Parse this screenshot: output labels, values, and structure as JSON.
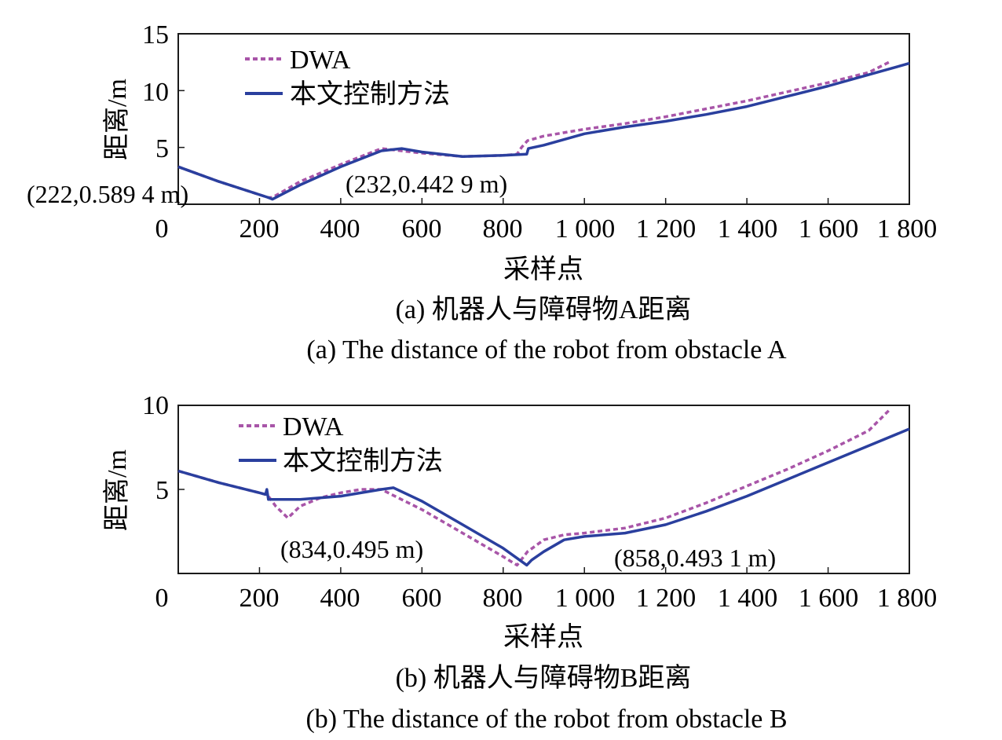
{
  "chart_data": [
    {
      "type": "line",
      "title": "",
      "caption_zh": "(a) 机器人与障碍物A距离",
      "caption_en": "(a) The distance of the robot from obstacle A",
      "xlabel": "采样点",
      "ylabel": "距离/m",
      "xlim": [
        0,
        1800
      ],
      "ylim": [
        0,
        15
      ],
      "xticks": [
        0,
        200,
        400,
        600,
        800,
        1000,
        1200,
        1400,
        1600,
        1800
      ],
      "xtick_labels": [
        "0",
        "200",
        "400",
        "600",
        "800",
        "1 000",
        "1 200",
        "1 400",
        "1 600",
        "1 800"
      ],
      "yticks": [
        5,
        10,
        15
      ],
      "ytick_labels": [
        "5",
        "10",
        "15"
      ],
      "legend_position": "top-left",
      "series": [
        {
          "name": "DWA",
          "color": "#a855a8",
          "dash": "dashed",
          "x": [
            0,
            100,
            222,
            232,
            300,
            400,
            500,
            550,
            600,
            700,
            800,
            834,
            845,
            860,
            900,
            1000,
            1100,
            1200,
            1300,
            1400,
            1500,
            1600,
            1700,
            1750
          ],
          "y": [
            3.3,
            2.0,
            0.59,
            0.6,
            2.0,
            3.5,
            4.9,
            4.7,
            4.5,
            4.2,
            4.3,
            4.4,
            5.0,
            5.6,
            6.0,
            6.6,
            7.1,
            7.7,
            8.4,
            9.1,
            9.9,
            10.7,
            11.6,
            12.5
          ]
        },
        {
          "name": "本文控制方法",
          "color": "#2a3f9e",
          "dash": "solid",
          "x": [
            0,
            100,
            222,
            232,
            300,
            400,
            500,
            550,
            600,
            700,
            800,
            858,
            862,
            900,
            1000,
            1100,
            1200,
            1300,
            1400,
            1500,
            1600,
            1700,
            1800
          ],
          "y": [
            3.3,
            2.0,
            0.59,
            0.44,
            1.7,
            3.3,
            4.7,
            4.9,
            4.6,
            4.2,
            4.3,
            4.4,
            4.9,
            5.2,
            6.2,
            6.8,
            7.3,
            7.9,
            8.6,
            9.5,
            10.4,
            11.4,
            12.4
          ]
        }
      ],
      "annotations": [
        {
          "text": "(222,0.589 4 m)"
        },
        {
          "text": "(232,0.442 9 m)"
        }
      ]
    },
    {
      "type": "line",
      "title": "",
      "caption_zh": "(b) 机器人与障碍物B距离",
      "caption_en": "(b) The distance of the robot from obstacle B",
      "xlabel": "采样点",
      "ylabel": "距离/m",
      "xlim": [
        0,
        1800
      ],
      "ylim": [
        0,
        10
      ],
      "xticks": [
        0,
        200,
        400,
        600,
        800,
        1000,
        1200,
        1400,
        1600,
        1800
      ],
      "xtick_labels": [
        "0",
        "200",
        "400",
        "600",
        "800",
        "1 000",
        "1 200",
        "1 400",
        "1 600",
        "1 800"
      ],
      "yticks": [
        5,
        10
      ],
      "ytick_labels": [
        "5",
        "10"
      ],
      "legend_position": "top-left",
      "series": [
        {
          "name": "DWA",
          "color": "#a855a8",
          "dash": "dashed",
          "x": [
            0,
            100,
            200,
            215,
            222,
            240,
            270,
            300,
            350,
            400,
            450,
            500,
            600,
            700,
            800,
            834,
            860,
            900,
            950,
            1000,
            1100,
            1200,
            1300,
            1400,
            1500,
            1600,
            1700,
            1750
          ],
          "y": [
            6.1,
            5.4,
            4.8,
            4.7,
            4.6,
            4.0,
            3.3,
            4.0,
            4.5,
            4.8,
            5.0,
            5.0,
            3.8,
            2.4,
            1.0,
            0.495,
            1.3,
            2.0,
            2.3,
            2.4,
            2.7,
            3.3,
            4.2,
            5.2,
            6.2,
            7.3,
            8.5,
            9.7
          ]
        },
        {
          "name": "本文控制方法",
          "color": "#2a3f9e",
          "dash": "solid",
          "x": [
            0,
            100,
            200,
            215,
            218,
            222,
            230,
            260,
            300,
            400,
            500,
            530,
            600,
            700,
            800,
            858,
            870,
            900,
            950,
            1000,
            1100,
            1200,
            1300,
            1400,
            1500,
            1600,
            1700,
            1800
          ],
          "y": [
            6.1,
            5.4,
            4.8,
            4.7,
            5.0,
            4.4,
            4.4,
            4.4,
            4.4,
            4.6,
            5.0,
            5.1,
            4.3,
            2.9,
            1.5,
            0.493,
            0.8,
            1.3,
            2.0,
            2.2,
            2.4,
            2.9,
            3.7,
            4.6,
            5.6,
            6.6,
            7.6,
            8.6
          ]
        }
      ],
      "annotations": [
        {
          "text": "(834,0.495 m)"
        },
        {
          "text": "(858,0.493 1 m)"
        }
      ]
    }
  ]
}
